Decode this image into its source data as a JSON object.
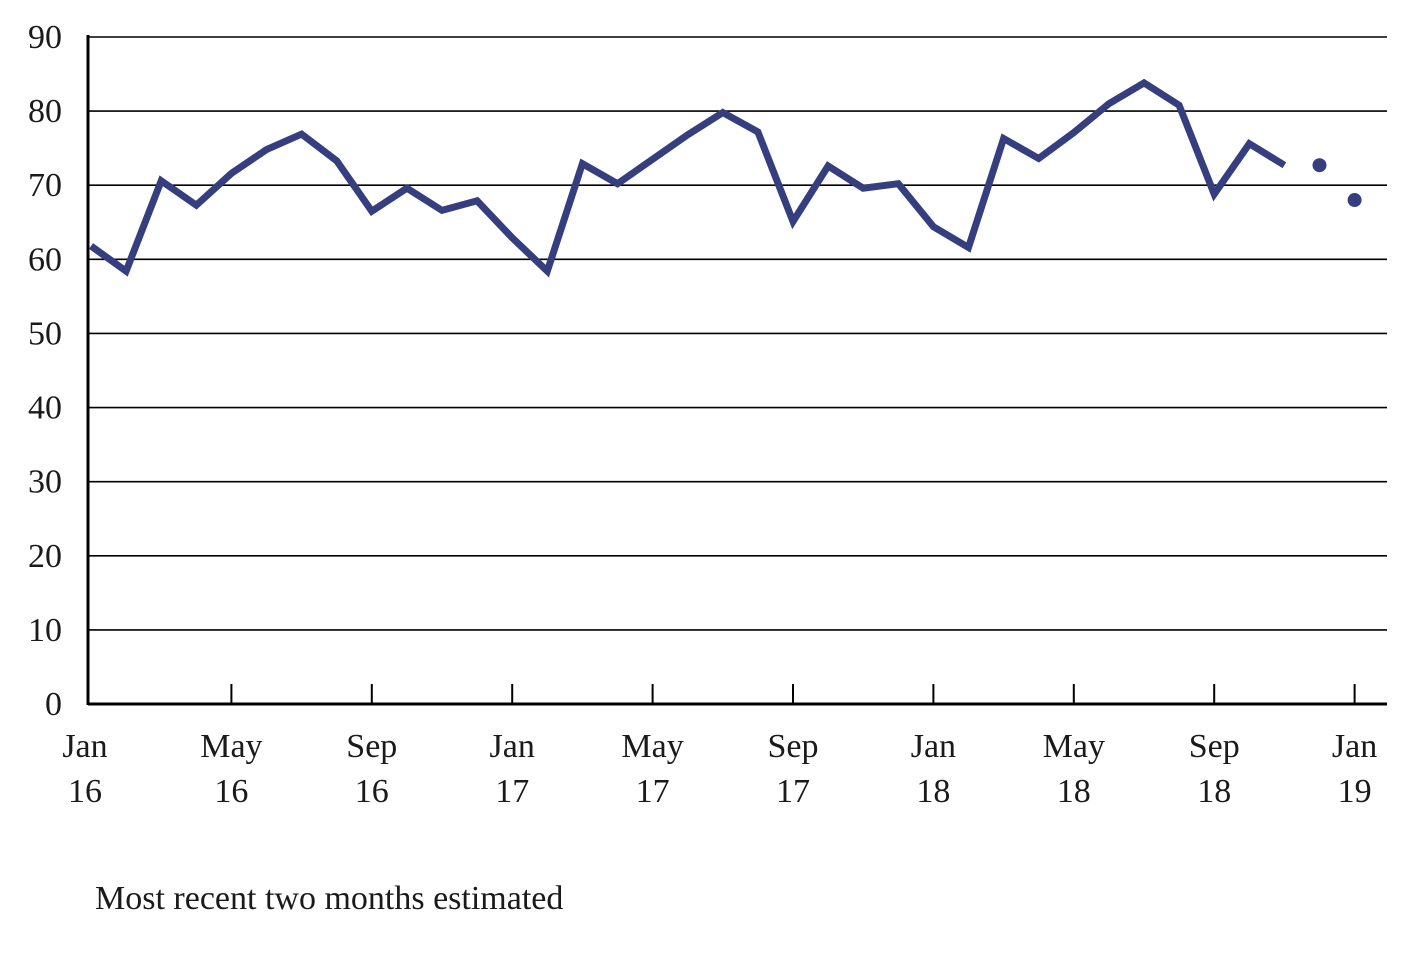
{
  "chart_data": {
    "type": "line",
    "title": "",
    "xlabel": "",
    "ylabel": "",
    "ylim": [
      0,
      90
    ],
    "yticks": [
      0,
      10,
      20,
      30,
      40,
      50,
      60,
      70,
      80,
      90
    ],
    "grid": true,
    "xtick_labels": [
      {
        "month": "Jan",
        "year": "16"
      },
      {
        "month": "May",
        "year": "16"
      },
      {
        "month": "Sep",
        "year": "16"
      },
      {
        "month": "Jan",
        "year": "17"
      },
      {
        "month": "May",
        "year": "17"
      },
      {
        "month": "Sep",
        "year": "17"
      },
      {
        "month": "Jan",
        "year": "18"
      },
      {
        "month": "May",
        "year": "18"
      },
      {
        "month": "Sep",
        "year": "18"
      },
      {
        "month": "Jan",
        "year": "19"
      }
    ],
    "x": [
      "2016-01",
      "2016-02",
      "2016-03",
      "2016-04",
      "2016-05",
      "2016-06",
      "2016-07",
      "2016-08",
      "2016-09",
      "2016-10",
      "2016-11",
      "2016-12",
      "2017-01",
      "2017-02",
      "2017-03",
      "2017-04",
      "2017-05",
      "2017-06",
      "2017-07",
      "2017-08",
      "2017-09",
      "2017-10",
      "2017-11",
      "2017-12",
      "2018-01",
      "2018-02",
      "2018-03",
      "2018-04",
      "2018-05",
      "2018-06",
      "2018-07",
      "2018-08",
      "2018-09",
      "2018-10",
      "2018-11",
      "2018-12",
      "2019-01"
    ],
    "series": [
      {
        "values": [
          61.8,
          58.4,
          70.6,
          67.3,
          71.6,
          74.8,
          76.9,
          73.3,
          66.5,
          69.6,
          66.6,
          67.9,
          62.9,
          58.4,
          72.9,
          70.2,
          73.5,
          76.8,
          79.8,
          77.2,
          65.1,
          72.6,
          69.6,
          70.2,
          64.4,
          61.6,
          76.3,
          73.6,
          77.1,
          81.0,
          83.8,
          80.8,
          68.8,
          75.6,
          72.7,
          null,
          null
        ]
      },
      {
        "style": "dots",
        "values": [
          null,
          null,
          null,
          null,
          null,
          null,
          null,
          null,
          null,
          null,
          null,
          null,
          null,
          null,
          null,
          null,
          null,
          null,
          null,
          null,
          null,
          null,
          null,
          null,
          null,
          null,
          null,
          null,
          null,
          null,
          null,
          null,
          null,
          null,
          null,
          72.7,
          68.0
        ]
      }
    ],
    "colors": {
      "line": "#353f7f",
      "grid": "#000000",
      "axis": "#000000"
    },
    "annotation": "Most recent two months estimated"
  }
}
